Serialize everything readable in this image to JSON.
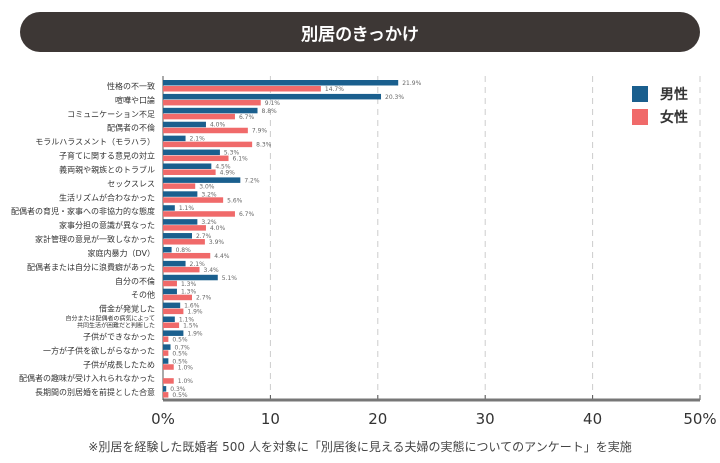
{
  "title": "別居のきっかけ",
  "footnote": "※別居を経験した既婚者 500 人を対象に「別居後に見える夫婦の実態についてのアンケート」を実施",
  "colors": {
    "male": "#1a5f8e",
    "female": "#f06a6a",
    "title_bg": "#3d3735"
  },
  "chart_data": {
    "type": "bar",
    "orientation": "horizontal",
    "title": "別居のきっかけ",
    "xlim": [
      0,
      50
    ],
    "x_ticks": [
      "0%",
      "10",
      "20",
      "30",
      "40",
      "50%"
    ],
    "grid": true,
    "legend_position": "top-right",
    "categories": [
      "性格の不一致",
      "喧嘩や口論",
      "コミュニケーション不足",
      "配偶者の不倫",
      "モラルハラスメント（モラハラ）",
      "子育てに関する意見の対立",
      "義両親や親族とのトラブル",
      "セックスレス",
      "生活リズムが合わなかった",
      "配偶者の育児・家事への非協力的な態度",
      "家事分担の意識が異なった",
      "家計管理の意見が一致しなかった",
      "家庭内暴力（DV）",
      "配偶者または自分に浪費癖があった",
      "自分の不倫",
      "その他",
      "借金が発覚した",
      "自分または配偶者の病気によって\n共同生活が困難だと判断した",
      "子供ができなかった",
      "一方が子供を欲しがらなかった",
      "子供が成長したため",
      "配偶者の趣味が受け入れられなかった",
      "長期間の別居婚を前提とした合意"
    ],
    "series": [
      {
        "name": "男性",
        "values": [
          21.9,
          20.3,
          8.8,
          4.0,
          2.1,
          5.3,
          4.5,
          7.2,
          3.2,
          1.1,
          3.2,
          2.7,
          0.8,
          2.1,
          5.1,
          1.3,
          1.6,
          1.1,
          1.9,
          0.7,
          0.5,
          null,
          0.3
        ]
      },
      {
        "name": "女性",
        "values": [
          14.7,
          9.1,
          6.7,
          7.9,
          8.3,
          6.1,
          4.9,
          3.0,
          5.6,
          6.7,
          4.0,
          3.9,
          4.4,
          3.4,
          1.3,
          2.7,
          1.9,
          1.5,
          0.5,
          0.5,
          1.0,
          1.0,
          0.5
        ]
      }
    ]
  }
}
